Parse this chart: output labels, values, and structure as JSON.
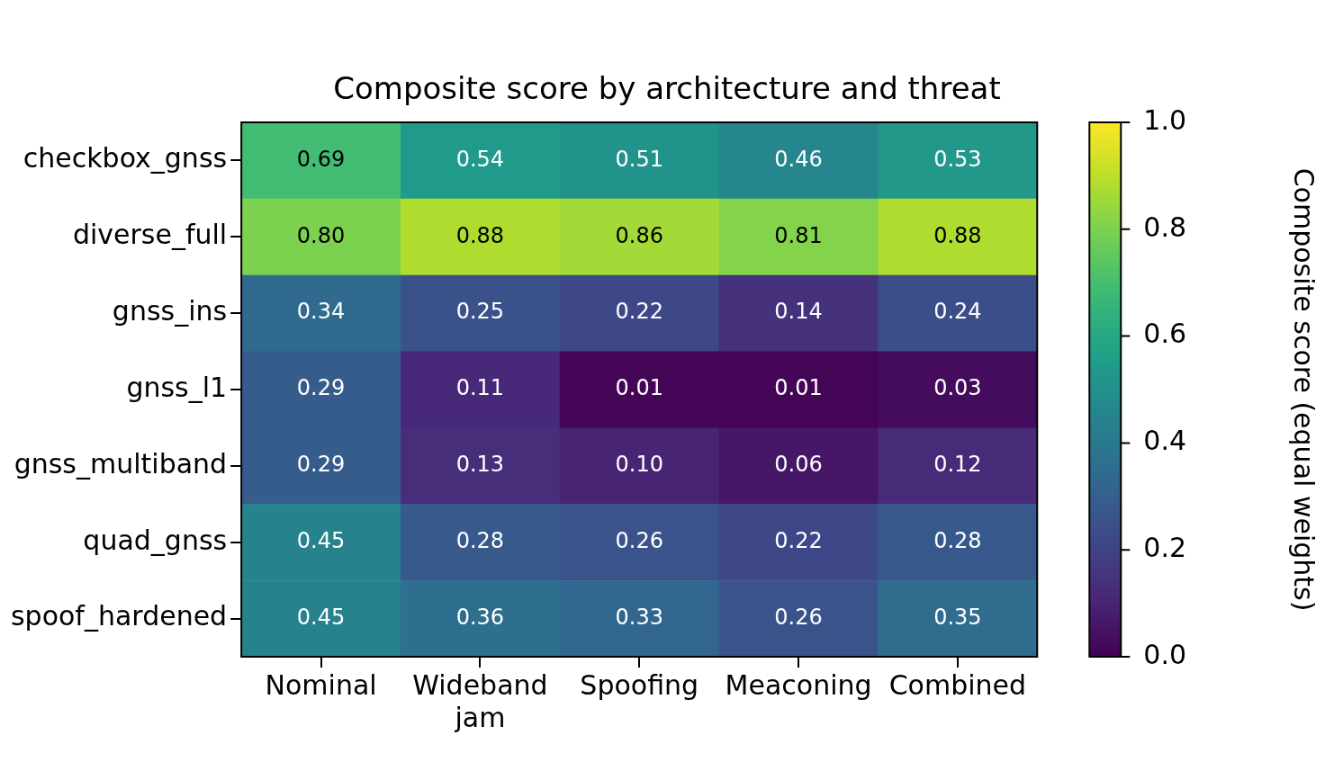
{
  "chart_data": {
    "type": "heatmap",
    "title": "Composite score by architecture and threat",
    "categories": [
      "Nominal",
      "Wideband jam",
      "Spoofing",
      "Meaconing",
      "Combined"
    ],
    "y_categories": [
      "checkbox_gnss",
      "diverse_full",
      "gnss_ins",
      "gnss_l1",
      "gnss_multiband",
      "quad_gnss",
      "spoof_hardened"
    ],
    "cells": [
      [
        0.69,
        0.54,
        0.51,
        0.46,
        0.53
      ],
      [
        0.8,
        0.88,
        0.86,
        0.81,
        0.88
      ],
      [
        0.34,
        0.25,
        0.22,
        0.14,
        0.24
      ],
      [
        0.29,
        0.11,
        0.01,
        0.01,
        0.03
      ],
      [
        0.29,
        0.13,
        0.1,
        0.06,
        0.12
      ],
      [
        0.45,
        0.28,
        0.26,
        0.22,
        0.28
      ],
      [
        0.45,
        0.36,
        0.33,
        0.26,
        0.35
      ]
    ],
    "cell_labels": [
      [
        "0.69",
        "0.54",
        "0.51",
        "0.46",
        "0.53"
      ],
      [
        "0.80",
        "0.88",
        "0.86",
        "0.81",
        "0.88"
      ],
      [
        "0.34",
        "0.25",
        "0.22",
        "0.14",
        "0.24"
      ],
      [
        "0.29",
        "0.11",
        "0.01",
        "0.01",
        "0.03"
      ],
      [
        "0.29",
        "0.13",
        "0.10",
        "0.06",
        "0.12"
      ],
      [
        "0.45",
        "0.28",
        "0.26",
        "0.22",
        "0.28"
      ],
      [
        "0.45",
        "0.36",
        "0.33",
        "0.26",
        "0.35"
      ]
    ],
    "clim": [
      0,
      1
    ],
    "cticks": [
      {
        "value": 0,
        "label": "0.0"
      },
      0.2,
      0.4,
      0.6,
      0.8,
      {
        "value": 1,
        "label": "1.0"
      }
    ],
    "clabel": "Composite score (equal weights)",
    "data_labels": true,
    "grid": false,
    "legend": false
  }
}
